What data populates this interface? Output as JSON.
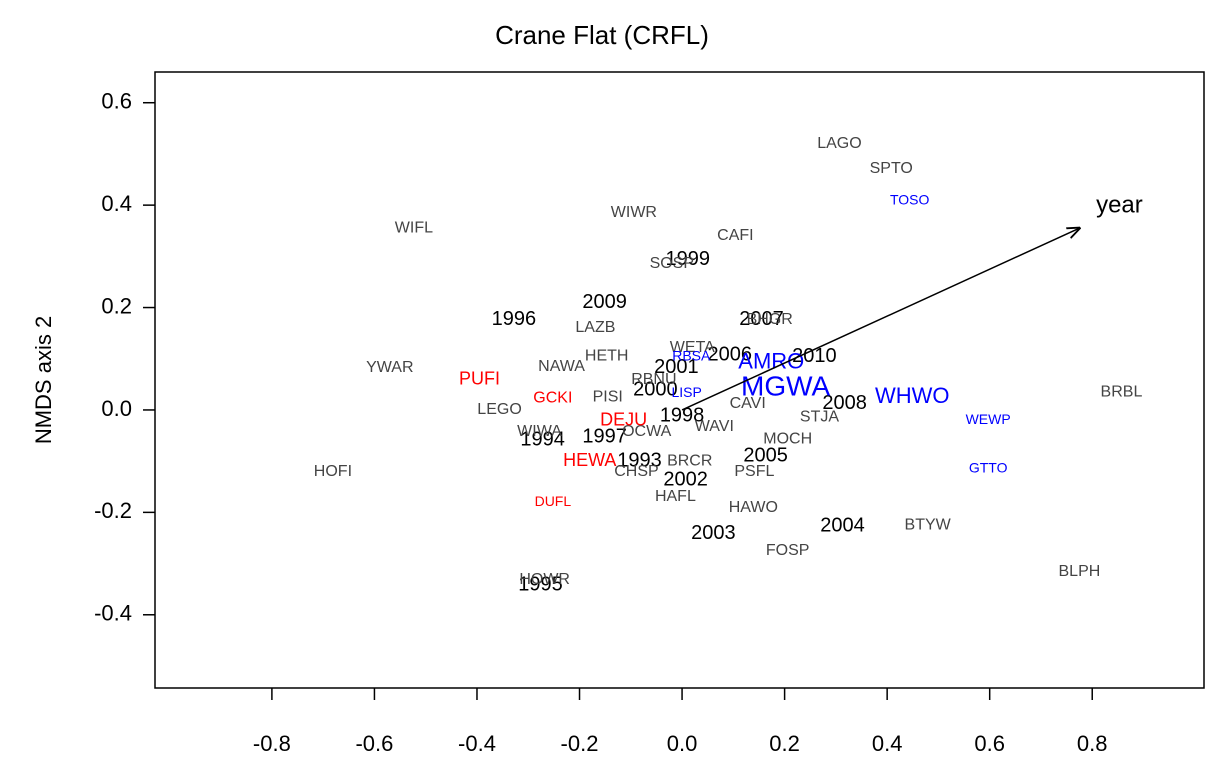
{
  "chart_data": {
    "type": "scatter",
    "title": "Crane Flat (CRFL)",
    "y_label": "NMDS axis 2",
    "xlim": [
      -1.028,
      1.018
    ],
    "ylim": [
      -0.543,
      0.66
    ],
    "xticks": [
      -0.8,
      -0.6,
      -0.4,
      -0.2,
      {
        "value": 0,
        "label": "0.0"
      },
      0.2,
      0.4,
      0.6,
      0.8
    ],
    "yticks": [
      -0.4,
      -0.2,
      {
        "value": 0,
        "label": "0.0"
      },
      0.2,
      0.4,
      0.6
    ],
    "series": [
      {
        "color": "#000000",
        "size": 20,
        "labels": [
          "1999",
          "1996",
          "2009",
          "2007",
          "2006",
          "2010",
          "2001",
          "2000",
          "1998",
          "2008",
          "1994",
          "1997",
          "1993",
          "2005",
          "2002",
          "2003",
          "2004",
          "1995"
        ],
        "x": [
          0.011,
          -0.328,
          -0.151,
          0.155,
          0.093,
          0.258,
          -0.011,
          -0.052,
          0.0,
          0.317,
          -0.272,
          -0.151,
          -0.083,
          0.163,
          0.007,
          0.061,
          0.313,
          -0.276
        ],
        "y": [
          0.293,
          0.176,
          0.209,
          0.176,
          0.107,
          0.104,
          0.082,
          0.039,
          -0.012,
          0.012,
          -0.059,
          -0.053,
          -0.1,
          -0.09,
          -0.137,
          -0.242,
          -0.227,
          -0.342
        ]
      },
      {
        "color": "#444444",
        "size": 16,
        "labels": [
          "LAGO",
          "SPTO",
          "WIWR",
          "CAFI",
          "SOSP",
          "WIFL",
          "LAZB",
          "BHGR",
          "WETA",
          "HETH",
          "NAWA",
          "YWAR",
          "PISI",
          "BRBL",
          "LEGO",
          "RBNU",
          "CAVI",
          "STJA",
          "WAVI",
          "OCWA",
          "MOCH",
          "HOFI",
          "CHSP",
          "BRCR",
          "PSFL",
          "HAFL",
          "HAWO",
          "BTYW",
          "FOSP",
          "BLPH",
          "HOWR",
          "WIWA"
        ],
        "x": [
          0.307,
          0.408,
          -0.094,
          0.104,
          -0.02,
          -0.523,
          -0.169,
          0.171,
          0.02,
          -0.147,
          -0.235,
          -0.57,
          -0.145,
          0.857,
          -0.356,
          -0.055,
          0.128,
          0.268,
          0.063,
          -0.069,
          0.206,
          -0.681,
          -0.089,
          0.015,
          0.141,
          -0.013,
          0.139,
          0.479,
          0.206,
          0.775,
          -0.268,
          -0.278
        ],
        "y": [
          0.52,
          0.471,
          0.385,
          0.34,
          0.285,
          0.355,
          0.16,
          0.176,
          0.121,
          0.105,
          0.084,
          0.082,
          0.025,
          0.035,
          0.0,
          0.059,
          0.012,
          -0.014,
          -0.033,
          -0.043,
          -0.057,
          -0.121,
          -0.121,
          -0.1,
          -0.121,
          -0.17,
          -0.191,
          -0.225,
          -0.275,
          -0.316,
          -0.332,
          -0.043
        ]
      },
      {
        "color": "#ff0000",
        "size": 18,
        "labels": [
          "PUFI",
          "DEJU",
          "HEWA"
        ],
        "x": [
          -0.395,
          -0.114,
          -0.18
        ],
        "y": [
          0.059,
          -0.021,
          -0.1
        ]
      },
      {
        "color": "#ff0000",
        "size": 16,
        "labels": [
          "GCKI"
        ],
        "x": [
          -0.252
        ],
        "y": [
          0.023
        ]
      },
      {
        "color": "#ff0000",
        "size": 14,
        "labels": [
          "DUFL"
        ],
        "x": [
          -0.252
        ],
        "y": [
          -0.18
        ]
      },
      {
        "color": "#0000ff",
        "size": 14,
        "labels": [
          "TOSO",
          "RBSA",
          "LISP",
          "WEWP",
          "GTTO"
        ],
        "x": [
          0.444,
          0.018,
          0.009,
          0.597,
          0.597
        ],
        "y": [
          0.408,
          0.104,
          0.033,
          -0.02,
          -0.115
        ]
      },
      {
        "color": "#0000ff",
        "size": 22,
        "labels": [
          "AMRO",
          "WHWO"
        ],
        "x": [
          0.174,
          0.449
        ],
        "y": [
          0.092,
          0.025
        ]
      },
      {
        "color": "#0000ff",
        "size": 28,
        "labels": [
          "MGWA"
        ],
        "x": [
          0.202
        ],
        "y": [
          0.043
        ]
      }
    ],
    "arrow": {
      "label": "year",
      "x": [
        0,
        0.775
      ],
      "y": [
        0,
        0.355
      ]
    }
  }
}
